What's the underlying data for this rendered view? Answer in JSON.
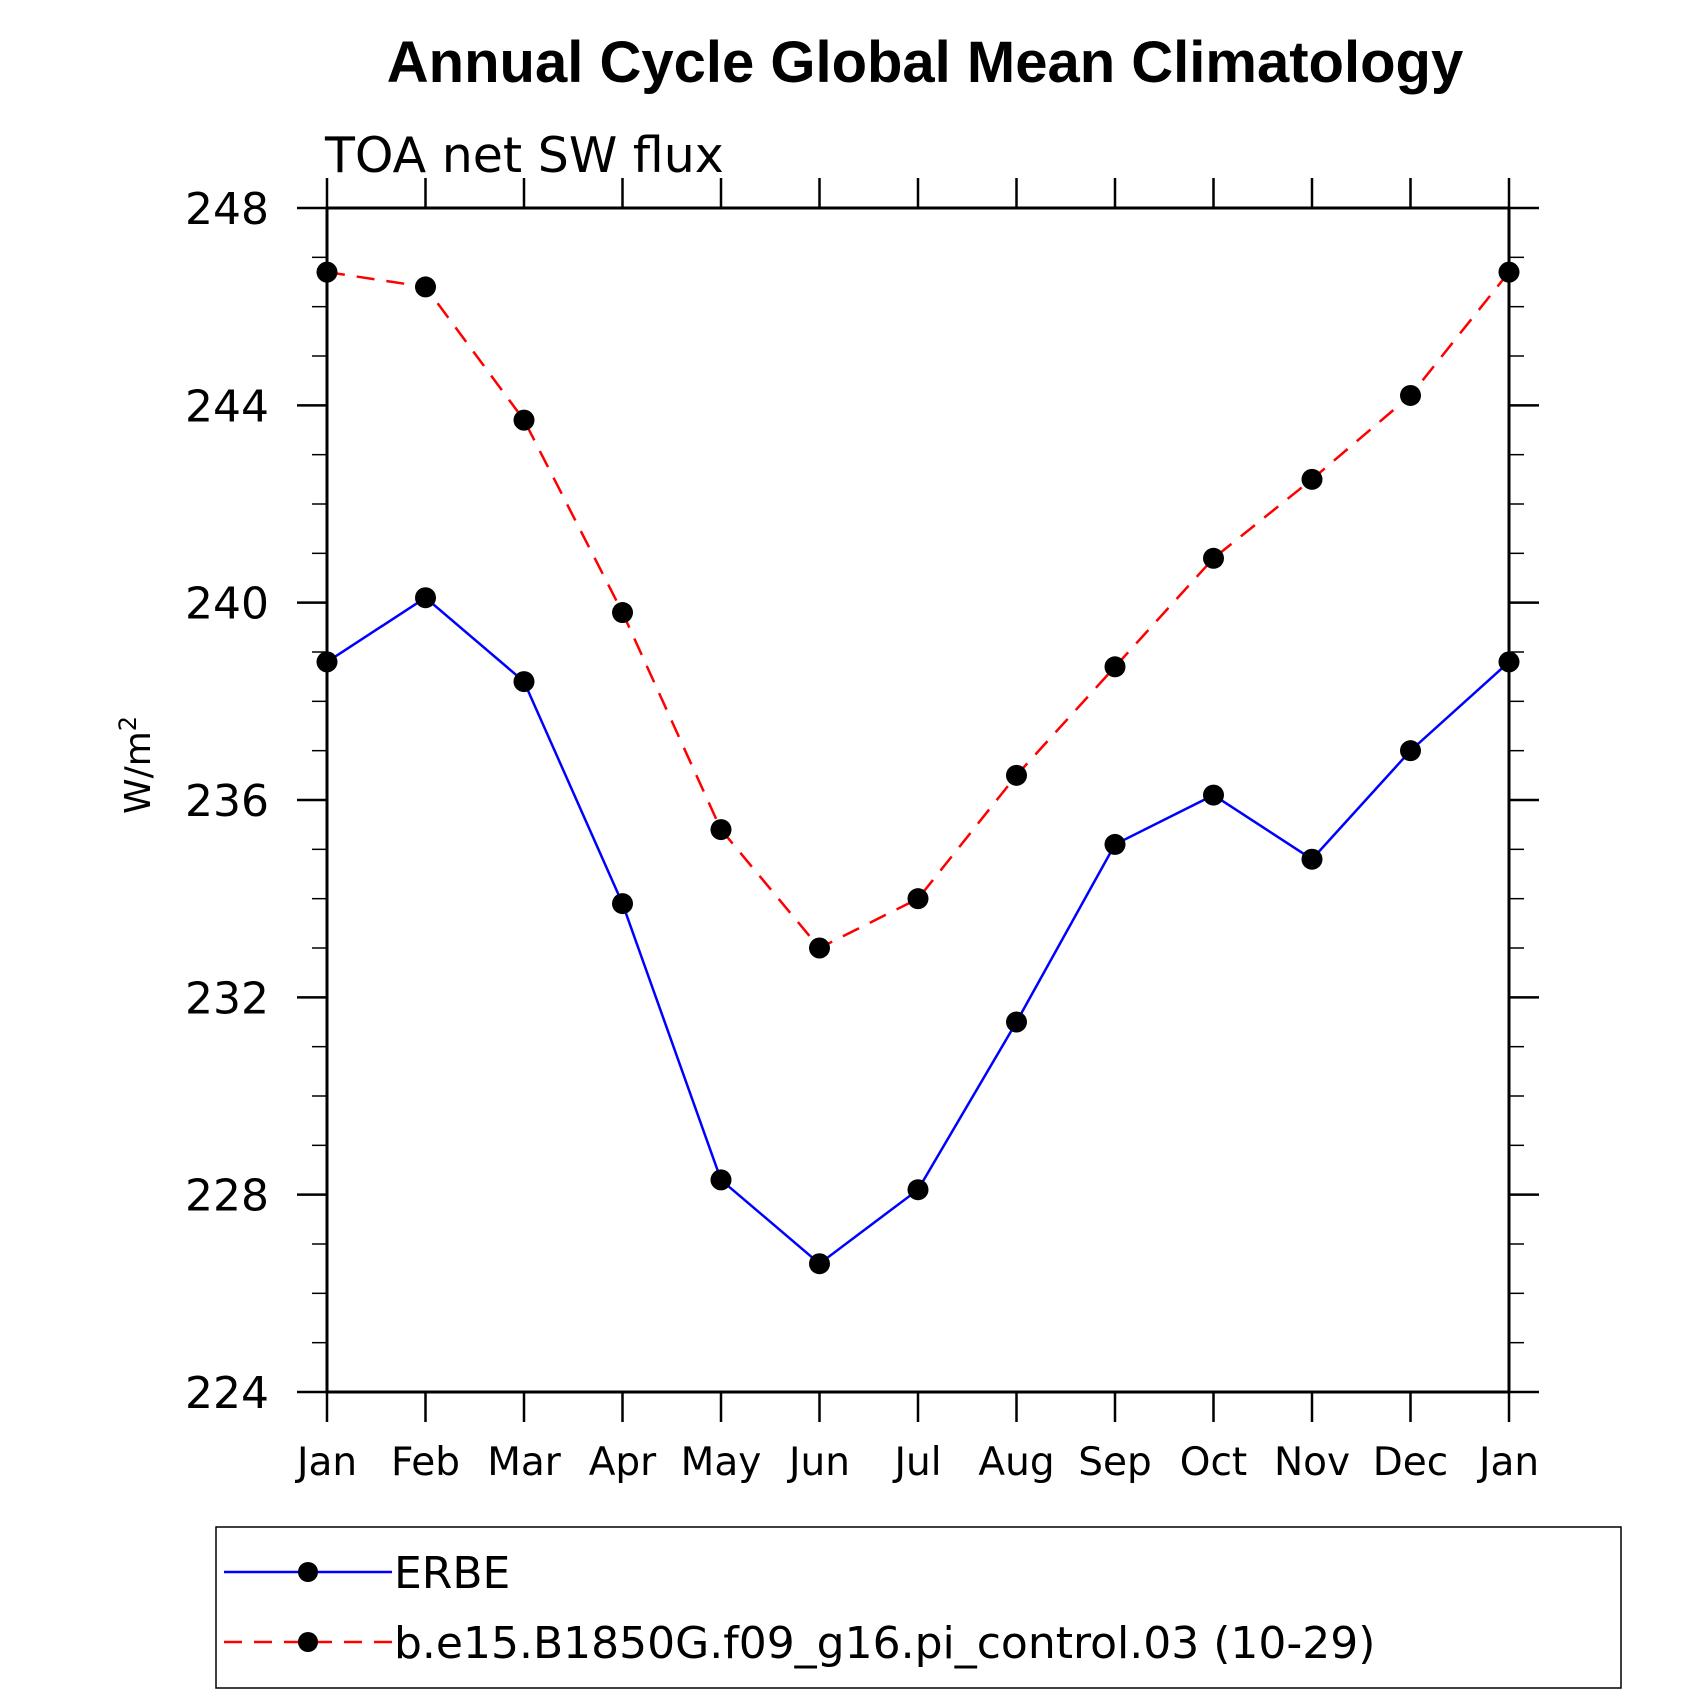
{
  "chart_data": {
    "type": "line",
    "title": "Annual Cycle Global Mean Climatology",
    "subtitle": "TOA net SW flux",
    "ylabel": "W/m",
    "ylabel_superscript": "2",
    "categories": [
      "Jan",
      "Feb",
      "Mar",
      "Apr",
      "May",
      "Jun",
      "Jul",
      "Aug",
      "Sep",
      "Oct",
      "Nov",
      "Dec",
      "Jan"
    ],
    "ylim": [
      224,
      248
    ],
    "yticks": [
      "224",
      "228",
      "232",
      "236",
      "240",
      "244",
      "248"
    ],
    "grid": false,
    "legend_position": "bottom",
    "series": [
      {
        "name": "ERBE",
        "color": "#0000ff",
        "style": "solid",
        "marker": "filled-circle",
        "values": [
          238.8,
          240.1,
          238.4,
          233.9,
          228.3,
          226.6,
          228.1,
          231.5,
          235.1,
          236.1,
          234.8,
          237.0,
          238.8
        ]
      },
      {
        "name": "b.e15.B1850G.f09_g16.pi_control.03 (10-29)",
        "color": "#ff0000",
        "style": "dashed",
        "marker": "filled-circle",
        "values": [
          246.7,
          246.4,
          243.7,
          239.8,
          235.4,
          233.0,
          234.0,
          236.5,
          238.7,
          240.9,
          242.5,
          244.2,
          246.7
        ]
      }
    ]
  }
}
